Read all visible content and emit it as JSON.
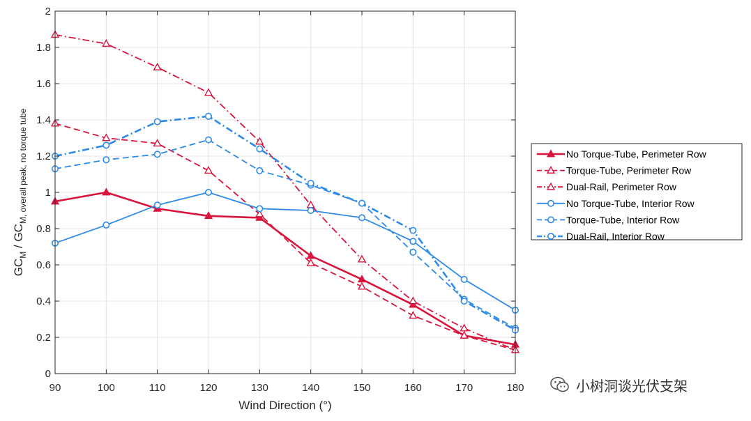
{
  "watermark_text": "小树洞谈光伏支架",
  "colors": {
    "perimeter": "#d9143c",
    "interior": "#2d8ae6",
    "axis": "#262626",
    "grid": "#e3e3e3"
  },
  "chart_data": {
    "type": "line",
    "title": "",
    "xlabel": "Wind Direction (°)",
    "ylabel_parts": {
      "gc1": "GC",
      "sub1": "M",
      "slash": " / GC",
      "sub2": "M, overall peak, no torque tube"
    },
    "xlim": [
      90,
      180
    ],
    "ylim": [
      0,
      2
    ],
    "x_ticks": [
      "90",
      "100",
      "110",
      "120",
      "130",
      "140",
      "150",
      "160",
      "170",
      "180"
    ],
    "y_ticks": [
      "0",
      "0.2",
      "0.4",
      "0.6",
      "0.8",
      "1",
      "1.2",
      "1.4",
      "1.6",
      "1.8",
      "2"
    ],
    "grid": true,
    "legend_position": "outside-right",
    "series": [
      {
        "name": "No Torque-Tube, Perimeter Row",
        "color": "perimeter",
        "dash": "solid",
        "marker": "triangle",
        "filled": true,
        "width": 2.6,
        "x": [
          90,
          100,
          110,
          120,
          130,
          140,
          150,
          160,
          170,
          180
        ],
        "y": [
          0.95,
          1.0,
          0.91,
          0.87,
          0.86,
          0.65,
          0.52,
          0.38,
          0.21,
          0.16
        ]
      },
      {
        "name": "Torque-Tube, Perimeter Row",
        "color": "perimeter",
        "dash": "dashed",
        "marker": "triangle",
        "filled": false,
        "width": 1.8,
        "x": [
          90,
          100,
          110,
          120,
          130,
          140,
          150,
          160,
          170,
          180
        ],
        "y": [
          1.38,
          1.3,
          1.27,
          1.12,
          0.88,
          0.61,
          0.48,
          0.32,
          0.21,
          0.13
        ]
      },
      {
        "name": "Dual-Rail, Perimeter Row",
        "color": "perimeter",
        "dash": "dashdot",
        "marker": "triangle",
        "filled": false,
        "width": 1.8,
        "x": [
          90,
          100,
          110,
          120,
          130,
          140,
          150,
          160,
          170,
          180
        ],
        "y": [
          1.87,
          1.82,
          1.69,
          1.55,
          1.28,
          0.93,
          0.63,
          0.4,
          0.25,
          0.13
        ]
      },
      {
        "name": "No Torque-Tube, Interior Row",
        "color": "interior",
        "dash": "solid",
        "marker": "circle",
        "filled": false,
        "width": 1.8,
        "x": [
          90,
          100,
          110,
          120,
          130,
          140,
          150,
          160,
          170,
          180
        ],
        "y": [
          0.72,
          0.82,
          0.93,
          1.0,
          0.91,
          0.9,
          0.86,
          0.73,
          0.52,
          0.35
        ]
      },
      {
        "name": "Torque-Tube, Interior Row",
        "color": "interior",
        "dash": "dashed",
        "marker": "circle",
        "filled": false,
        "width": 1.8,
        "x": [
          90,
          100,
          110,
          120,
          130,
          140,
          150,
          160,
          170,
          180
        ],
        "y": [
          1.13,
          1.18,
          1.21,
          1.29,
          1.12,
          1.04,
          0.94,
          0.67,
          0.41,
          0.25
        ]
      },
      {
        "name": "Dual-Rail, Interior Row",
        "color": "interior",
        "dash": "dashdot",
        "marker": "circle",
        "filled": false,
        "width": 2.6,
        "x": [
          90,
          100,
          110,
          120,
          130,
          140,
          150,
          160,
          170,
          180
        ],
        "y": [
          1.2,
          1.26,
          1.39,
          1.42,
          1.24,
          1.05,
          0.94,
          0.79,
          0.4,
          0.24
        ]
      }
    ]
  }
}
